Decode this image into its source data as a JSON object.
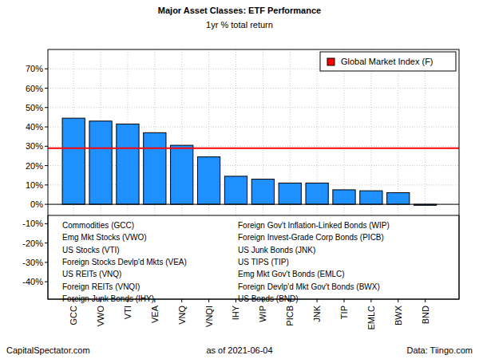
{
  "chart_data": {
    "type": "bar",
    "title": "Major Asset Classes: ETF Performance",
    "subtitle": "1yr % total return",
    "categories": [
      "GCC",
      "VWO",
      "VTI",
      "VEA",
      "VNQ",
      "VNQI",
      "IHY",
      "WIP",
      "PICB",
      "JNK",
      "TIP",
      "EMLC",
      "BWX",
      "BND"
    ],
    "category_names": [
      "Commodities (GCC)",
      "Emg Mkt Stocks (VWO)",
      "US Stocks (VTI)",
      "Foreign Stocks Devlp'd Mkts (VEA)",
      "US REITs (VNQ)",
      "Foreign REITs (VNQI)",
      "Foreign Junk Bonds (IHY)",
      "Foreign Gov't Inflation-Linked Bonds (WIP)",
      "Foreign Invest-Grade Corp Bonds (PICB)",
      "US Junk Bonds (JNK)",
      "US TIPS (TIP)",
      "Emg Mkt Gov't Bonds (EMLC)",
      "Foreign Devlp'd Mkt Gov't Bonds (BWX)",
      "US Bonds (BND)"
    ],
    "values": [
      44.5,
      43,
      41.5,
      37,
      30.5,
      24.5,
      14.5,
      13,
      11,
      11,
      7.5,
      7,
      6,
      -0.5
    ],
    "color": "#1e90ff",
    "reference_line": {
      "name": "Global Market Index (F)",
      "value": 29,
      "color": "#ff0000"
    },
    "legend": "topright",
    "ylim": [
      -49,
      80
    ],
    "yticks": [
      {
        "value": -40,
        "label": "-40%"
      },
      {
        "value": -30,
        "label": "-30%"
      },
      {
        "value": -20,
        "label": "-20%"
      },
      {
        "value": -10,
        "label": "-10%"
      },
      {
        "value": 0,
        "label": "0%"
      },
      {
        "value": 10,
        "label": "10%"
      },
      {
        "value": 20,
        "label": "20%"
      },
      {
        "value": 30,
        "label": "30%"
      },
      {
        "value": 40,
        "label": "40%"
      },
      {
        "value": 50,
        "label": "50%"
      },
      {
        "value": 60,
        "label": "60%"
      },
      {
        "value": 70,
        "label": "70%"
      }
    ],
    "grid": true,
    "footer": {
      "left": "CapitalSpectator.com",
      "center": "as of  2021-06-04",
      "right": "Data: Tiingo.com"
    }
  }
}
